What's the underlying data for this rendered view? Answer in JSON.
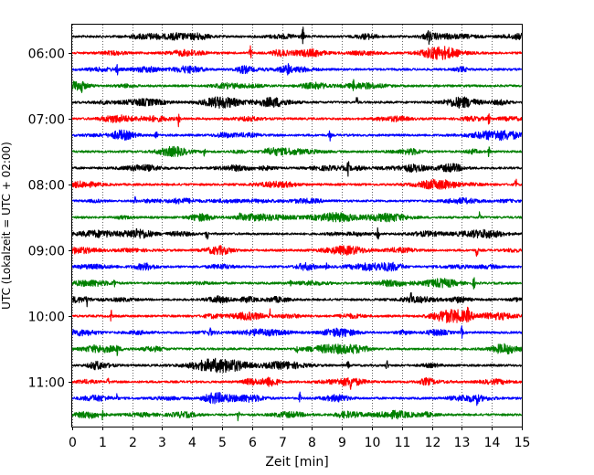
{
  "chart_data": {
    "type": "line",
    "title": "",
    "xlabel": "Zeit  [min]",
    "ylabel": "UTC (Lokalzeit = UTC + 02:00)",
    "xlim": [
      0,
      15
    ],
    "x_ticks": [
      "0",
      "1",
      "2",
      "3",
      "4",
      "5",
      "6",
      "7",
      "8",
      "9",
      "10",
      "11",
      "12",
      "13",
      "14",
      "15"
    ],
    "y_ticks": [
      "06:00",
      "07:00",
      "08:00",
      "09:00",
      "10:00",
      "11:00"
    ],
    "grid": "vertical-dotted",
    "trace_interval_minutes": 15,
    "colors": [
      "#000000",
      "#ff0000",
      "#0000ff",
      "#008000"
    ],
    "series": [
      {
        "start": "05:45",
        "color": "#000000",
        "events": [
          [
            7.7,
            1.0
          ],
          [
            11.9,
            0.7
          ]
        ]
      },
      {
        "start": "06:00",
        "color": "#ff0000",
        "events": [
          [
            5.95,
            1.0
          ]
        ]
      },
      {
        "start": "06:15",
        "color": "#0000ff",
        "events": [
          [
            1.5,
            0.6
          ],
          [
            7.2,
            0.5
          ]
        ]
      },
      {
        "start": "06:30",
        "color": "#008000",
        "events": [
          [
            0.3,
            0.9
          ],
          [
            9.4,
            0.6
          ]
        ]
      },
      {
        "start": "06:45",
        "color": "#000000",
        "events": [
          [
            9.5,
            0.6
          ]
        ]
      },
      {
        "start": "07:00",
        "color": "#ff0000",
        "events": [
          [
            3.55,
            0.9
          ],
          [
            13.9,
            0.7
          ]
        ]
      },
      {
        "start": "07:15",
        "color": "#0000ff",
        "events": [
          [
            2.8,
            0.5
          ],
          [
            8.6,
            0.6
          ]
        ]
      },
      {
        "start": "07:30",
        "color": "#008000",
        "events": [
          [
            4.4,
            0.7
          ],
          [
            13.9,
            0.6
          ]
        ]
      },
      {
        "start": "07:45",
        "color": "#000000",
        "events": [
          [
            9.2,
            0.9
          ]
        ]
      },
      {
        "start": "08:00",
        "color": "#ff0000",
        "events": [
          [
            14.8,
            0.7
          ]
        ]
      },
      {
        "start": "08:15",
        "color": "#0000ff",
        "events": [
          [
            2.1,
            0.5
          ]
        ]
      },
      {
        "start": "08:30",
        "color": "#008000",
        "events": [
          [
            5.6,
            0.7
          ],
          [
            13.6,
            0.7
          ]
        ]
      },
      {
        "start": "08:45",
        "color": "#000000",
        "events": [
          [
            4.5,
            0.9
          ],
          [
            10.2,
            0.8
          ]
        ]
      },
      {
        "start": "09:00",
        "color": "#ff0000",
        "events": [
          [
            13.5,
            0.9
          ]
        ]
      },
      {
        "start": "09:15",
        "color": "#0000ff",
        "events": [
          [
            8.5,
            0.6
          ]
        ]
      },
      {
        "start": "09:30",
        "color": "#008000",
        "events": [
          [
            1.4,
            0.6
          ],
          [
            7.3,
            0.6
          ],
          [
            13.4,
            0.7
          ]
        ]
      },
      {
        "start": "09:45",
        "color": "#000000",
        "events": [
          [
            0.5,
            0.6
          ],
          [
            11.3,
            0.8
          ]
        ]
      },
      {
        "start": "10:00",
        "color": "#ff0000",
        "events": [
          [
            1.3,
            0.7
          ],
          [
            6.6,
            0.7
          ],
          [
            13.2,
            0.6
          ]
        ]
      },
      {
        "start": "10:15",
        "color": "#0000ff",
        "events": [
          [
            4.6,
            0.7
          ],
          [
            13.0,
            0.7
          ]
        ]
      },
      {
        "start": "10:30",
        "color": "#008000",
        "events": [
          [
            1.5,
            0.6
          ],
          [
            7.5,
            0.6
          ]
        ]
      },
      {
        "start": "10:45",
        "color": "#000000",
        "events": [
          [
            10.5,
            0.6
          ],
          [
            9.2,
            0.5
          ]
        ]
      },
      {
        "start": "11:00",
        "color": "#ff0000",
        "events": [
          [
            9.3,
            0.6
          ],
          [
            1.2,
            0.5
          ]
        ]
      },
      {
        "start": "11:15",
        "color": "#0000ff",
        "events": [
          [
            7.6,
            0.7
          ],
          [
            1.5,
            0.5
          ],
          [
            13.5,
            0.6
          ]
        ]
      },
      {
        "start": "11:30",
        "color": "#008000",
        "events": [
          [
            5.55,
            0.9
          ],
          [
            1.0,
            0.5
          ]
        ]
      }
    ]
  }
}
